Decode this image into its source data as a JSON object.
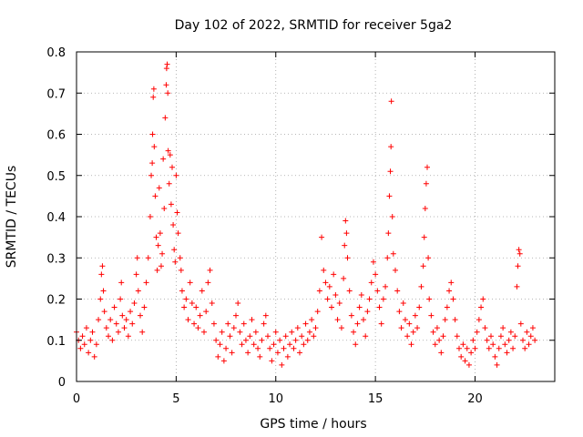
{
  "chart_data": {
    "type": "scatter",
    "title": "Day 102 of 2022, SRMTID for receiver 5ga2",
    "xlabel": "GPS time / hours",
    "ylabel": "SRMTID / TECUs",
    "xlim": [
      0,
      24
    ],
    "ylim": [
      0,
      0.8
    ],
    "xticks": [
      0,
      5,
      10,
      15,
      20
    ],
    "xtick_labels": [
      "0",
      "5",
      "10",
      "15",
      "20"
    ],
    "yticks": [
      0,
      0.1,
      0.2,
      0.3,
      0.4,
      0.5,
      0.6,
      0.7,
      0.8
    ],
    "ytick_labels": [
      "0",
      "0.1",
      "0.2",
      "0.3",
      "0.4",
      "0.5",
      "0.6",
      "0.7",
      "0.8"
    ],
    "grid": true,
    "marker": "plus",
    "color": "#ff0000",
    "series": [
      {
        "name": "SRMTID",
        "points": [
          [
            0.0,
            0.12
          ],
          [
            0.1,
            0.1
          ],
          [
            0.2,
            0.08
          ],
          [
            0.3,
            0.11
          ],
          [
            0.4,
            0.09
          ],
          [
            0.5,
            0.13
          ],
          [
            0.6,
            0.07
          ],
          [
            0.7,
            0.1
          ],
          [
            0.8,
            0.12
          ],
          [
            0.9,
            0.06
          ],
          [
            1.0,
            0.09
          ],
          [
            1.1,
            0.15
          ],
          [
            1.2,
            0.2
          ],
          [
            1.25,
            0.26
          ],
          [
            1.3,
            0.28
          ],
          [
            1.35,
            0.22
          ],
          [
            1.4,
            0.17
          ],
          [
            1.5,
            0.13
          ],
          [
            1.6,
            0.11
          ],
          [
            1.7,
            0.15
          ],
          [
            1.8,
            0.1
          ],
          [
            1.9,
            0.18
          ],
          [
            2.0,
            0.14
          ],
          [
            2.1,
            0.12
          ],
          [
            2.2,
            0.2
          ],
          [
            2.25,
            0.24
          ],
          [
            2.3,
            0.16
          ],
          [
            2.4,
            0.13
          ],
          [
            2.5,
            0.15
          ],
          [
            2.6,
            0.11
          ],
          [
            2.7,
            0.17
          ],
          [
            2.8,
            0.14
          ],
          [
            2.9,
            0.19
          ],
          [
            3.0,
            0.26
          ],
          [
            3.05,
            0.3
          ],
          [
            3.1,
            0.22
          ],
          [
            3.2,
            0.16
          ],
          [
            3.3,
            0.12
          ],
          [
            3.4,
            0.18
          ],
          [
            3.5,
            0.24
          ],
          [
            3.6,
            0.3
          ],
          [
            3.7,
            0.4
          ],
          [
            3.75,
            0.5
          ],
          [
            3.8,
            0.53
          ],
          [
            3.82,
            0.6
          ],
          [
            3.85,
            0.69
          ],
          [
            3.88,
            0.71
          ],
          [
            3.9,
            0.57
          ],
          [
            3.95,
            0.45
          ],
          [
            4.0,
            0.35
          ],
          [
            4.05,
            0.27
          ],
          [
            4.1,
            0.33
          ],
          [
            4.15,
            0.47
          ],
          [
            4.2,
            0.36
          ],
          [
            4.25,
            0.28
          ],
          [
            4.3,
            0.31
          ],
          [
            4.35,
            0.54
          ],
          [
            4.4,
            0.42
          ],
          [
            4.45,
            0.64
          ],
          [
            4.5,
            0.72
          ],
          [
            4.52,
            0.76
          ],
          [
            4.55,
            0.77
          ],
          [
            4.58,
            0.7
          ],
          [
            4.6,
            0.56
          ],
          [
            4.65,
            0.48
          ],
          [
            4.7,
            0.55
          ],
          [
            4.75,
            0.43
          ],
          [
            4.8,
            0.52
          ],
          [
            4.85,
            0.38
          ],
          [
            4.9,
            0.32
          ],
          [
            4.95,
            0.29
          ],
          [
            5.0,
            0.5
          ],
          [
            5.05,
            0.41
          ],
          [
            5.1,
            0.36
          ],
          [
            5.2,
            0.3
          ],
          [
            5.25,
            0.27
          ],
          [
            5.3,
            0.22
          ],
          [
            5.4,
            0.18
          ],
          [
            5.5,
            0.2
          ],
          [
            5.6,
            0.15
          ],
          [
            5.7,
            0.24
          ],
          [
            5.8,
            0.19
          ],
          [
            5.9,
            0.14
          ],
          [
            6.0,
            0.18
          ],
          [
            6.1,
            0.13
          ],
          [
            6.2,
            0.16
          ],
          [
            6.3,
            0.22
          ],
          [
            6.4,
            0.12
          ],
          [
            6.5,
            0.17
          ],
          [
            6.6,
            0.24
          ],
          [
            6.7,
            0.27
          ],
          [
            6.8,
            0.19
          ],
          [
            6.9,
            0.14
          ],
          [
            7.0,
            0.1
          ],
          [
            7.1,
            0.06
          ],
          [
            7.2,
            0.09
          ],
          [
            7.3,
            0.12
          ],
          [
            7.4,
            0.05
          ],
          [
            7.5,
            0.08
          ],
          [
            7.6,
            0.14
          ],
          [
            7.7,
            0.11
          ],
          [
            7.8,
            0.07
          ],
          [
            7.9,
            0.13
          ],
          [
            8.0,
            0.16
          ],
          [
            8.1,
            0.19
          ],
          [
            8.2,
            0.12
          ],
          [
            8.3,
            0.09
          ],
          [
            8.4,
            0.14
          ],
          [
            8.5,
            0.1
          ],
          [
            8.6,
            0.07
          ],
          [
            8.7,
            0.11
          ],
          [
            8.8,
            0.15
          ],
          [
            8.9,
            0.09
          ],
          [
            9.0,
            0.12
          ],
          [
            9.1,
            0.08
          ],
          [
            9.2,
            0.06
          ],
          [
            9.3,
            0.1
          ],
          [
            9.4,
            0.14
          ],
          [
            9.5,
            0.16
          ],
          [
            9.6,
            0.11
          ],
          [
            9.7,
            0.08
          ],
          [
            9.8,
            0.05
          ],
          [
            9.9,
            0.09
          ],
          [
            10.0,
            0.12
          ],
          [
            10.1,
            0.07
          ],
          [
            10.2,
            0.1
          ],
          [
            10.3,
            0.04
          ],
          [
            10.4,
            0.08
          ],
          [
            10.5,
            0.11
          ],
          [
            10.6,
            0.06
          ],
          [
            10.7,
            0.09
          ],
          [
            10.8,
            0.12
          ],
          [
            10.9,
            0.08
          ],
          [
            11.0,
            0.1
          ],
          [
            11.1,
            0.13
          ],
          [
            11.2,
            0.07
          ],
          [
            11.3,
            0.11
          ],
          [
            11.4,
            0.09
          ],
          [
            11.5,
            0.14
          ],
          [
            11.6,
            0.1
          ],
          [
            11.7,
            0.12
          ],
          [
            11.8,
            0.15
          ],
          [
            11.9,
            0.11
          ],
          [
            12.0,
            0.13
          ],
          [
            12.1,
            0.17
          ],
          [
            12.2,
            0.22
          ],
          [
            12.3,
            0.35
          ],
          [
            12.4,
            0.27
          ],
          [
            12.5,
            0.24
          ],
          [
            12.6,
            0.2
          ],
          [
            12.7,
            0.23
          ],
          [
            12.8,
            0.18
          ],
          [
            12.9,
            0.26
          ],
          [
            13.0,
            0.21
          ],
          [
            13.1,
            0.15
          ],
          [
            13.2,
            0.19
          ],
          [
            13.3,
            0.13
          ],
          [
            13.4,
            0.25
          ],
          [
            13.45,
            0.33
          ],
          [
            13.5,
            0.39
          ],
          [
            13.55,
            0.36
          ],
          [
            13.6,
            0.3
          ],
          [
            13.7,
            0.22
          ],
          [
            13.8,
            0.16
          ],
          [
            13.9,
            0.12
          ],
          [
            14.0,
            0.09
          ],
          [
            14.1,
            0.14
          ],
          [
            14.2,
            0.18
          ],
          [
            14.3,
            0.21
          ],
          [
            14.4,
            0.15
          ],
          [
            14.5,
            0.11
          ],
          [
            14.6,
            0.17
          ],
          [
            14.7,
            0.2
          ],
          [
            14.8,
            0.24
          ],
          [
            14.9,
            0.29
          ],
          [
            15.0,
            0.26
          ],
          [
            15.1,
            0.22
          ],
          [
            15.2,
            0.18
          ],
          [
            15.3,
            0.14
          ],
          [
            15.4,
            0.2
          ],
          [
            15.5,
            0.23
          ],
          [
            15.6,
            0.3
          ],
          [
            15.65,
            0.36
          ],
          [
            15.7,
            0.45
          ],
          [
            15.75,
            0.51
          ],
          [
            15.78,
            0.57
          ],
          [
            15.8,
            0.68
          ],
          [
            15.85,
            0.4
          ],
          [
            15.9,
            0.31
          ],
          [
            16.0,
            0.27
          ],
          [
            16.1,
            0.22
          ],
          [
            16.2,
            0.17
          ],
          [
            16.3,
            0.13
          ],
          [
            16.4,
            0.19
          ],
          [
            16.5,
            0.15
          ],
          [
            16.6,
            0.11
          ],
          [
            16.7,
            0.14
          ],
          [
            16.8,
            0.09
          ],
          [
            16.9,
            0.12
          ],
          [
            17.0,
            0.16
          ],
          [
            17.1,
            0.13
          ],
          [
            17.2,
            0.18
          ],
          [
            17.3,
            0.23
          ],
          [
            17.4,
            0.28
          ],
          [
            17.45,
            0.35
          ],
          [
            17.5,
            0.42
          ],
          [
            17.55,
            0.48
          ],
          [
            17.6,
            0.52
          ],
          [
            17.65,
            0.3
          ],
          [
            17.7,
            0.2
          ],
          [
            17.8,
            0.16
          ],
          [
            17.9,
            0.12
          ],
          [
            18.0,
            0.09
          ],
          [
            18.1,
            0.13
          ],
          [
            18.2,
            0.1
          ],
          [
            18.3,
            0.07
          ],
          [
            18.4,
            0.11
          ],
          [
            18.5,
            0.15
          ],
          [
            18.6,
            0.18
          ],
          [
            18.7,
            0.22
          ],
          [
            18.8,
            0.24
          ],
          [
            18.9,
            0.2
          ],
          [
            19.0,
            0.15
          ],
          [
            19.1,
            0.11
          ],
          [
            19.2,
            0.08
          ],
          [
            19.3,
            0.06
          ],
          [
            19.4,
            0.09
          ],
          [
            19.5,
            0.05
          ],
          [
            19.6,
            0.08
          ],
          [
            19.7,
            0.04
          ],
          [
            19.8,
            0.07
          ],
          [
            19.9,
            0.1
          ],
          [
            20.0,
            0.08
          ],
          [
            20.1,
            0.12
          ],
          [
            20.2,
            0.15
          ],
          [
            20.3,
            0.18
          ],
          [
            20.4,
            0.2
          ],
          [
            20.5,
            0.13
          ],
          [
            20.6,
            0.1
          ],
          [
            20.7,
            0.08
          ],
          [
            20.8,
            0.11
          ],
          [
            20.9,
            0.09
          ],
          [
            21.0,
            0.06
          ],
          [
            21.1,
            0.04
          ],
          [
            21.2,
            0.08
          ],
          [
            21.3,
            0.11
          ],
          [
            21.4,
            0.13
          ],
          [
            21.5,
            0.09
          ],
          [
            21.6,
            0.07
          ],
          [
            21.7,
            0.1
          ],
          [
            21.8,
            0.12
          ],
          [
            21.9,
            0.08
          ],
          [
            22.0,
            0.11
          ],
          [
            22.1,
            0.23
          ],
          [
            22.15,
            0.28
          ],
          [
            22.2,
            0.32
          ],
          [
            22.25,
            0.31
          ],
          [
            22.3,
            0.14
          ],
          [
            22.4,
            0.1
          ],
          [
            22.5,
            0.08
          ],
          [
            22.6,
            0.12
          ],
          [
            22.7,
            0.09
          ],
          [
            22.8,
            0.11
          ],
          [
            22.9,
            0.13
          ],
          [
            23.0,
            0.1
          ]
        ]
      }
    ]
  }
}
